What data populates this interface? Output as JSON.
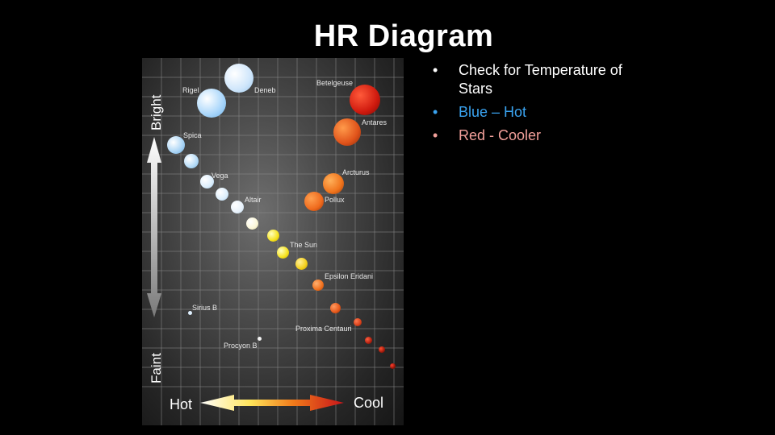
{
  "slide": {
    "title": "HR Diagram",
    "bullets": [
      {
        "text": "Check for Temperature of Stars",
        "color": "#ffffff"
      },
      {
        "text": "Blue – Hot",
        "color": "#3aa3f0"
      },
      {
        "text": "Red - Cooler",
        "color": "#f2a09a"
      }
    ],
    "bullet_glyph": "•"
  },
  "diagram": {
    "axis": {
      "bright_label": "Bright",
      "faint_label": "Faint",
      "hot_label": "Hot",
      "cool_label": "Cool"
    },
    "stars": [
      {
        "name": "Rigel",
        "color": "#bfe3ff"
      },
      {
        "name": "Deneb",
        "color": "#e6f3ff"
      },
      {
        "name": "Betelgeuse",
        "color": "#cf1a0e"
      },
      {
        "name": "Antares",
        "color": "#e0531a"
      },
      {
        "name": "Spica",
        "color": "#a9d4f5"
      },
      {
        "name": "Vega",
        "color": "#dceefc"
      },
      {
        "name": "Altair",
        "color": "#e8f2fb"
      },
      {
        "name": "Arcturus",
        "color": "#f0741c"
      },
      {
        "name": "Pollux",
        "color": "#ef6a1d"
      },
      {
        "name": "The Sun",
        "color": "#f6e21c"
      },
      {
        "name": "Epsilon Eridani",
        "color": "#f0701d"
      },
      {
        "name": "Sirius B",
        "color": "#dff0ff"
      },
      {
        "name": "Proxima Centauri",
        "color": "#d9401a"
      },
      {
        "name": "Procyon B",
        "color": "#f2f2f2"
      }
    ]
  }
}
